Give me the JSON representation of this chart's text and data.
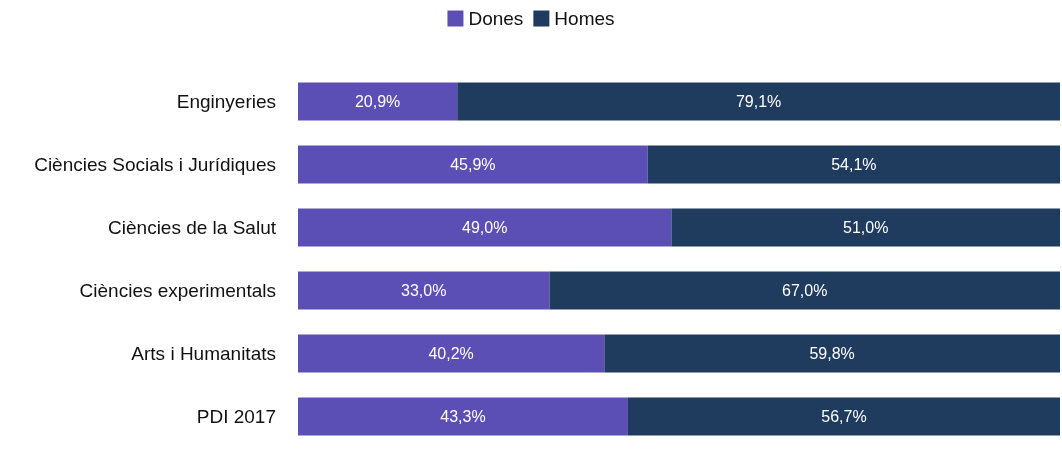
{
  "chart_data": {
    "type": "bar",
    "orientation": "horizontal",
    "stacked": true,
    "categories": [
      "Enginyeries",
      "Ciències Socials i Jurídiques",
      "Ciències de la Salut",
      "Ciències experimentals",
      "Arts i Humanitats",
      "PDI 2017"
    ],
    "series": [
      {
        "name": "Dones",
        "color": "#5b4fb5",
        "values": [
          20.9,
          45.9,
          49.0,
          33.0,
          40.2,
          43.3
        ],
        "value_labels": [
          "20,9%",
          "45,9%",
          "49,0%",
          "33,0%",
          "40,2%",
          "43,3%"
        ]
      },
      {
        "name": "Homes",
        "color": "#1f3b5e",
        "values": [
          79.1,
          54.1,
          51.0,
          67.0,
          59.8,
          56.7
        ],
        "value_labels": [
          "79,1%",
          "54,1%",
          "51,0%",
          "67,0%",
          "59,8%",
          "56,7%"
        ]
      }
    ],
    "xlim": [
      0,
      100
    ],
    "legend": "top",
    "tick_labels": "y"
  }
}
